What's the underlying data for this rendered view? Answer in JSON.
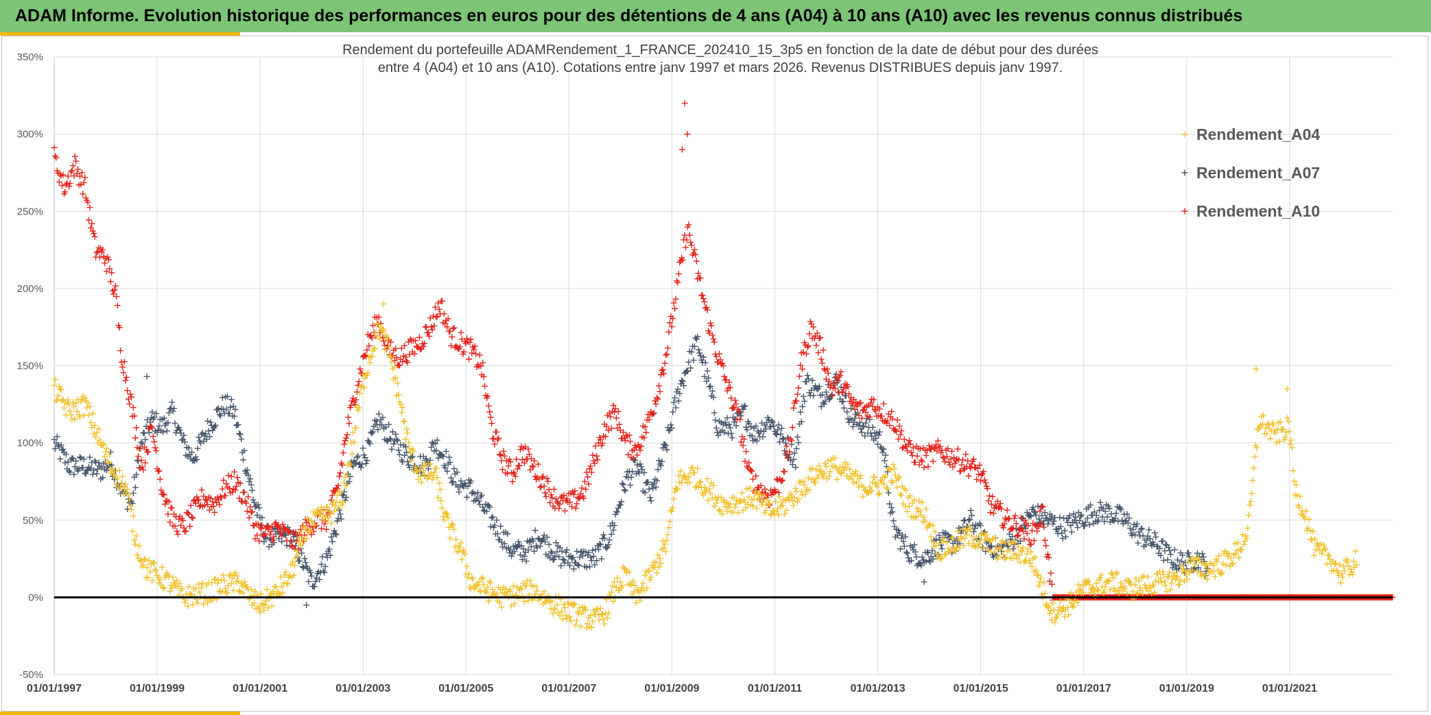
{
  "header": {
    "title": "ADAM Informe. Evolution historique des performances en euros pour des détentions de 4 ans (A04) à 10 ans (A10) avec les revenus connus distribués"
  },
  "colors": {
    "banner": "#7cc576",
    "accent": "#f2b705",
    "a04": "#f2c12e",
    "a07": "#44546a",
    "a10": "#e32219",
    "zero_line": "#000000",
    "grid": "#d9d9d9"
  },
  "chart_data": {
    "type": "scatter",
    "title_line1": "Rendement du portefeuille ADAMRendement_1_FRANCE_202410_15_3p5  en fonction de la date de début pour des durées",
    "title_line2": "entre 4 (A04) et 10 ans (A10). Cotations entre janv 1997 et mars 2026. Revenus DISTRIBUES depuis janv 1997.",
    "xlim": [
      1997.0,
      2023.0
    ],
    "ylim": [
      -50,
      350
    ],
    "y_ticks": [
      -50,
      0,
      50,
      100,
      150,
      200,
      250,
      300,
      350
    ],
    "y_tick_labels": [
      "-50%",
      "0%",
      "50%",
      "100%",
      "150%",
      "200%",
      "250%",
      "300%",
      "350%"
    ],
    "x_ticks": [
      1997,
      1999,
      2001,
      2003,
      2005,
      2007,
      2009,
      2011,
      2013,
      2015,
      2017,
      2019,
      2021
    ],
    "x_tick_labels": [
      "01/01/1997",
      "01/01/1999",
      "01/01/2001",
      "01/01/2003",
      "01/01/2005",
      "01/01/2007",
      "01/01/2009",
      "01/01/2011",
      "01/01/2013",
      "01/01/2015",
      "01/01/2017",
      "01/01/2019",
      "01/01/2021"
    ],
    "marker": "+",
    "legend_position": "top-right",
    "series": [
      {
        "name": "Rendement_A04",
        "x_end": 2022.3,
        "key_points": [
          [
            1997.0,
            135
          ],
          [
            1997.3,
            120
          ],
          [
            1997.6,
            125
          ],
          [
            1997.9,
            100
          ],
          [
            1998.1,
            85
          ],
          [
            1998.4,
            70
          ],
          [
            1998.6,
            35
          ],
          [
            1998.8,
            18
          ],
          [
            1999.0,
            15
          ],
          [
            1999.3,
            8
          ],
          [
            1999.5,
            0
          ],
          [
            1999.8,
            2
          ],
          [
            2000.0,
            3
          ],
          [
            2000.3,
            8
          ],
          [
            2000.6,
            10
          ],
          [
            2000.8,
            0
          ],
          [
            2001.0,
            -5
          ],
          [
            2001.3,
            2
          ],
          [
            2001.6,
            15
          ],
          [
            2001.9,
            45
          ],
          [
            2002.1,
            50
          ],
          [
            2002.4,
            55
          ],
          [
            2002.6,
            65
          ],
          [
            2002.8,
            100
          ],
          [
            2003.0,
            140
          ],
          [
            2003.3,
            175
          ],
          [
            2003.5,
            160
          ],
          [
            2003.7,
            130
          ],
          [
            2003.9,
            95
          ],
          [
            2004.1,
            80
          ],
          [
            2004.4,
            80
          ],
          [
            2004.6,
            50
          ],
          [
            2004.9,
            30
          ],
          [
            2005.1,
            10
          ],
          [
            2005.4,
            5
          ],
          [
            2005.7,
            0
          ],
          [
            2006.0,
            2
          ],
          [
            2006.3,
            5
          ],
          [
            2006.6,
            -2
          ],
          [
            2006.9,
            -8
          ],
          [
            2007.2,
            -12
          ],
          [
            2007.5,
            -15
          ],
          [
            2007.7,
            -10
          ],
          [
            2007.9,
            5
          ],
          [
            2008.1,
            15
          ],
          [
            2008.3,
            0
          ],
          [
            2008.6,
            15
          ],
          [
            2008.9,
            35
          ],
          [
            2009.1,
            75
          ],
          [
            2009.4,
            80
          ],
          [
            2009.7,
            70
          ],
          [
            2010.0,
            60
          ],
          [
            2010.3,
            62
          ],
          [
            2010.6,
            65
          ],
          [
            2010.9,
            55
          ],
          [
            2011.2,
            60
          ],
          [
            2011.5,
            70
          ],
          [
            2011.8,
            80
          ],
          [
            2012.1,
            85
          ],
          [
            2012.4,
            80
          ],
          [
            2012.7,
            72
          ],
          [
            2013.0,
            72
          ],
          [
            2013.3,
            80
          ],
          [
            2013.6,
            60
          ],
          [
            2013.9,
            55
          ],
          [
            2014.2,
            30
          ],
          [
            2014.5,
            35
          ],
          [
            2014.8,
            40
          ],
          [
            2015.1,
            35
          ],
          [
            2015.4,
            30
          ],
          [
            2015.7,
            30
          ],
          [
            2016.0,
            25
          ],
          [
            2016.2,
            5
          ],
          [
            2016.4,
            -10
          ],
          [
            2016.7,
            -5
          ],
          [
            2017.0,
            5
          ],
          [
            2017.3,
            8
          ],
          [
            2017.6,
            10
          ],
          [
            2017.9,
            5
          ],
          [
            2018.2,
            8
          ],
          [
            2018.5,
            10
          ],
          [
            2018.8,
            12
          ],
          [
            2019.1,
            20
          ],
          [
            2019.4,
            18
          ],
          [
            2019.7,
            22
          ],
          [
            2020.0,
            30
          ],
          [
            2020.2,
            45
          ],
          [
            2020.4,
            115
          ],
          [
            2020.7,
            105
          ],
          [
            2021.0,
            110
          ],
          [
            2021.1,
            70
          ],
          [
            2021.3,
            55
          ],
          [
            2021.5,
            30
          ],
          [
            2021.8,
            25
          ],
          [
            2022.0,
            15
          ],
          [
            2022.2,
            20
          ],
          [
            2022.3,
            25
          ]
        ]
      },
      {
        "name": "Rendement_A07",
        "x_end": 2019.4,
        "key_points": [
          [
            1997.0,
            100
          ],
          [
            1997.3,
            85
          ],
          [
            1997.6,
            85
          ],
          [
            1997.9,
            82
          ],
          [
            1998.1,
            88
          ],
          [
            1998.3,
            70
          ],
          [
            1998.5,
            60
          ],
          [
            1998.7,
            100
          ],
          [
            1998.9,
            115
          ],
          [
            1999.1,
            110
          ],
          [
            1999.3,
            120
          ],
          [
            1999.5,
            100
          ],
          [
            1999.7,
            90
          ],
          [
            2000.0,
            110
          ],
          [
            2000.3,
            125
          ],
          [
            2000.5,
            120
          ],
          [
            2000.7,
            90
          ],
          [
            2000.9,
            60
          ],
          [
            2001.1,
            40
          ],
          [
            2001.3,
            38
          ],
          [
            2001.6,
            40
          ],
          [
            2001.8,
            25
          ],
          [
            2002.0,
            10
          ],
          [
            2002.3,
            25
          ],
          [
            2002.6,
            60
          ],
          [
            2002.8,
            85
          ],
          [
            2003.1,
            95
          ],
          [
            2003.3,
            115
          ],
          [
            2003.6,
            100
          ],
          [
            2003.9,
            90
          ],
          [
            2004.2,
            85
          ],
          [
            2004.4,
            100
          ],
          [
            2004.6,
            90
          ],
          [
            2004.8,
            75
          ],
          [
            2005.1,
            70
          ],
          [
            2005.4,
            55
          ],
          [
            2005.7,
            40
          ],
          [
            2005.9,
            30
          ],
          [
            2006.2,
            30
          ],
          [
            2006.4,
            40
          ],
          [
            2006.7,
            30
          ],
          [
            2006.9,
            25
          ],
          [
            2007.2,
            25
          ],
          [
            2007.5,
            25
          ],
          [
            2007.8,
            40
          ],
          [
            2008.1,
            75
          ],
          [
            2008.3,
            85
          ],
          [
            2008.6,
            65
          ],
          [
            2008.9,
            100
          ],
          [
            2009.1,
            130
          ],
          [
            2009.3,
            150
          ],
          [
            2009.5,
            165
          ],
          [
            2009.7,
            140
          ],
          [
            2009.9,
            110
          ],
          [
            2010.2,
            110
          ],
          [
            2010.4,
            120
          ],
          [
            2010.6,
            105
          ],
          [
            2010.9,
            115
          ],
          [
            2011.2,
            100
          ],
          [
            2011.4,
            90
          ],
          [
            2011.6,
            140
          ],
          [
            2011.9,
            130
          ],
          [
            2012.2,
            140
          ],
          [
            2012.5,
            115
          ],
          [
            2012.8,
            110
          ],
          [
            2013.1,
            100
          ],
          [
            2013.3,
            45
          ],
          [
            2013.6,
            30
          ],
          [
            2013.9,
            25
          ],
          [
            2014.2,
            35
          ],
          [
            2014.5,
            35
          ],
          [
            2014.8,
            50
          ],
          [
            2015.1,
            35
          ],
          [
            2015.4,
            30
          ],
          [
            2015.7,
            40
          ],
          [
            2016.0,
            55
          ],
          [
            2016.3,
            50
          ],
          [
            2016.6,
            45
          ],
          [
            2016.9,
            50
          ],
          [
            2017.2,
            55
          ],
          [
            2017.5,
            55
          ],
          [
            2017.8,
            50
          ],
          [
            2018.1,
            40
          ],
          [
            2018.4,
            35
          ],
          [
            2018.7,
            25
          ],
          [
            2019.0,
            22
          ],
          [
            2019.2,
            25
          ],
          [
            2019.4,
            20
          ]
        ]
      },
      {
        "name": "Rendement_A10",
        "x_end": 2016.4,
        "zero_from": 2016.4,
        "zero_to": 2023.0,
        "key_points": [
          [
            1997.0,
            285
          ],
          [
            1997.2,
            265
          ],
          [
            1997.4,
            280
          ],
          [
            1997.6,
            265
          ],
          [
            1997.8,
            225
          ],
          [
            1998.0,
            220
          ],
          [
            1998.2,
            195
          ],
          [
            1998.3,
            160
          ],
          [
            1998.5,
            125
          ],
          [
            1998.7,
            85
          ],
          [
            1998.9,
            110
          ],
          [
            1999.1,
            70
          ],
          [
            1999.3,
            50
          ],
          [
            1999.5,
            45
          ],
          [
            1999.7,
            55
          ],
          [
            1999.9,
            65
          ],
          [
            2000.1,
            60
          ],
          [
            2000.3,
            70
          ],
          [
            2000.5,
            75
          ],
          [
            2000.7,
            65
          ],
          [
            2000.9,
            45
          ],
          [
            2001.1,
            40
          ],
          [
            2001.3,
            45
          ],
          [
            2001.5,
            40
          ],
          [
            2001.7,
            35
          ],
          [
            2001.9,
            45
          ],
          [
            2002.1,
            50
          ],
          [
            2002.3,
            50
          ],
          [
            2002.5,
            70
          ],
          [
            2002.7,
            110
          ],
          [
            2002.9,
            140
          ],
          [
            2003.1,
            165
          ],
          [
            2003.3,
            180
          ],
          [
            2003.5,
            160
          ],
          [
            2003.7,
            155
          ],
          [
            2003.9,
            160
          ],
          [
            2004.1,
            165
          ],
          [
            2004.3,
            175
          ],
          [
            2004.5,
            190
          ],
          [
            2004.7,
            170
          ],
          [
            2004.9,
            165
          ],
          [
            2005.1,
            160
          ],
          [
            2005.3,
            150
          ],
          [
            2005.5,
            110
          ],
          [
            2005.7,
            90
          ],
          [
            2005.9,
            80
          ],
          [
            2006.1,
            95
          ],
          [
            2006.3,
            85
          ],
          [
            2006.5,
            75
          ],
          [
            2006.7,
            65
          ],
          [
            2006.9,
            60
          ],
          [
            2007.1,
            62
          ],
          [
            2007.3,
            70
          ],
          [
            2007.5,
            90
          ],
          [
            2007.7,
            110
          ],
          [
            2007.9,
            120
          ],
          [
            2008.1,
            100
          ],
          [
            2008.3,
            95
          ],
          [
            2008.5,
            110
          ],
          [
            2008.7,
            130
          ],
          [
            2008.9,
            160
          ],
          [
            2009.1,
            200
          ],
          [
            2009.3,
            240
          ],
          [
            2009.5,
            210
          ],
          [
            2009.7,
            180
          ],
          [
            2009.9,
            155
          ],
          [
            2010.1,
            135
          ],
          [
            2010.3,
            115
          ],
          [
            2010.5,
            80
          ],
          [
            2010.7,
            70
          ],
          [
            2010.9,
            65
          ],
          [
            2011.1,
            75
          ],
          [
            2011.3,
            100
          ],
          [
            2011.5,
            150
          ],
          [
            2011.7,
            175
          ],
          [
            2011.9,
            160
          ],
          [
            2012.1,
            135
          ],
          [
            2012.3,
            140
          ],
          [
            2012.5,
            125
          ],
          [
            2012.7,
            120
          ],
          [
            2012.9,
            125
          ],
          [
            2013.1,
            120
          ],
          [
            2013.3,
            115
          ],
          [
            2013.6,
            95
          ],
          [
            2013.9,
            90
          ],
          [
            2014.2,
            95
          ],
          [
            2014.5,
            90
          ],
          [
            2014.8,
            85
          ],
          [
            2015.0,
            80
          ],
          [
            2015.2,
            60
          ],
          [
            2015.5,
            50
          ],
          [
            2015.8,
            45
          ],
          [
            2016.0,
            40
          ],
          [
            2016.2,
            55
          ],
          [
            2016.4,
            0
          ]
        ]
      }
    ],
    "special_points": [
      {
        "series": "Rendement_A10",
        "x": 2009.25,
        "y": 320
      },
      {
        "series": "Rendement_A10",
        "x": 2009.3,
        "y": 300
      },
      {
        "series": "Rendement_A10",
        "x": 2009.2,
        "y": 290
      },
      {
        "series": "Rendement_A04",
        "x": 2020.35,
        "y": 148
      },
      {
        "series": "Rendement_A04",
        "x": 2020.95,
        "y": 135
      },
      {
        "series": "Rendement_A04",
        "x": 2003.4,
        "y": 190
      },
      {
        "series": "Rendement_A07",
        "x": 2001.9,
        "y": -5
      },
      {
        "series": "Rendement_A07",
        "x": 2013.9,
        "y": 10
      },
      {
        "series": "Rendement_A07",
        "x": 1998.8,
        "y": 143
      }
    ]
  }
}
